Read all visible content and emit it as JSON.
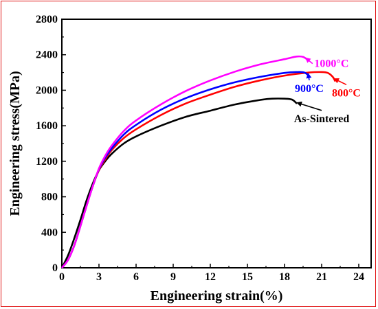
{
  "chart_data": {
    "type": "line",
    "title": "",
    "xlabel": "Engineering strain(%)",
    "ylabel": "Engineering stress(MPa)",
    "xlim": [
      0,
      25
    ],
    "ylim": [
      0,
      2800
    ],
    "xticks": [
      0,
      3,
      6,
      9,
      12,
      15,
      18,
      21,
      24
    ],
    "yticks": [
      0,
      400,
      800,
      1200,
      1600,
      2000,
      2400,
      2800
    ],
    "grid": false,
    "legend": "inline annotations with arrows",
    "series": [
      {
        "name": "As-Sintered",
        "color": "#000000",
        "x": [
          0,
          0.5,
          1,
          1.5,
          2,
          2.5,
          3,
          3.5,
          4,
          5,
          6,
          8,
          10,
          12,
          14,
          16,
          17,
          18,
          18.6,
          19.0
        ],
        "y": [
          0,
          140,
          330,
          540,
          760,
          950,
          1100,
          1200,
          1280,
          1400,
          1480,
          1600,
          1700,
          1770,
          1840,
          1890,
          1905,
          1905,
          1895,
          1850
        ]
      },
      {
        "name": "800°C",
        "color": "#ff0000",
        "x": [
          0,
          0.5,
          1,
          1.5,
          2,
          2.5,
          3,
          3.5,
          4,
          5,
          6,
          8,
          10,
          12,
          14,
          16,
          18,
          20,
          21,
          21.5,
          21.9,
          22.1
        ],
        "y": [
          0,
          90,
          250,
          470,
          700,
          920,
          1100,
          1220,
          1320,
          1460,
          1560,
          1720,
          1850,
          1950,
          2040,
          2110,
          2165,
          2200,
          2205,
          2195,
          2150,
          2100
        ]
      },
      {
        "name": "900°C",
        "color": "#0000ff",
        "x": [
          0,
          0.5,
          1,
          1.5,
          2,
          2.5,
          3,
          3.5,
          4,
          5,
          6,
          8,
          10,
          12,
          14,
          16,
          18,
          19,
          19.6,
          20.0
        ],
        "y": [
          0,
          90,
          250,
          470,
          700,
          920,
          1110,
          1240,
          1340,
          1500,
          1610,
          1780,
          1910,
          2010,
          2090,
          2150,
          2195,
          2205,
          2200,
          2160
        ]
      },
      {
        "name": "1000°C",
        "color": "#ff00ff",
        "x": [
          0,
          0.5,
          1,
          1.5,
          2,
          2.5,
          3,
          3.5,
          4,
          5,
          6,
          8,
          10,
          12,
          14,
          16,
          18,
          19,
          19.5,
          19.9
        ],
        "y": [
          0,
          90,
          250,
          470,
          700,
          920,
          1120,
          1260,
          1370,
          1540,
          1660,
          1840,
          1990,
          2110,
          2210,
          2290,
          2350,
          2380,
          2375,
          2340
        ]
      }
    ],
    "annotations": [
      {
        "text": "1000°C",
        "color": "#ff00ff",
        "x": 21.8,
        "y": 2300,
        "arrow_to": [
          19.7,
          2365
        ],
        "arrow": true
      },
      {
        "text": "900°C",
        "color": "#0000ff",
        "x": 20.0,
        "y": 2020,
        "arrow_to": [
          19.9,
          2190
        ],
        "arrow": true
      },
      {
        "text": "800°C",
        "color": "#ff0000",
        "x": 23.0,
        "y": 1970,
        "arrow_to": [
          22.0,
          2130
        ],
        "arrow": true
      },
      {
        "text": "As-Sintered",
        "color": "#000000",
        "x": 21.0,
        "y": 1680,
        "arrow_to": [
          19.0,
          1860
        ],
        "arrow": true
      }
    ]
  }
}
